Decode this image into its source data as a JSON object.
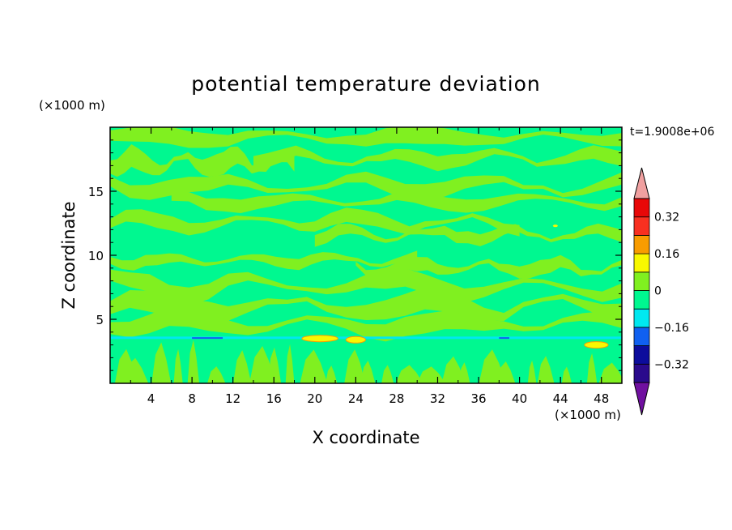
{
  "chart_data": {
    "type": "heatmap",
    "title": "potential temperature deviation",
    "xlabel": "X coordinate",
    "ylabel": "Z coordinate",
    "x_unit": "(×1000 m)",
    "y_unit": "(×1000 m)",
    "time_label": "t=1.9008e+06",
    "xlim": [
      0,
      50
    ],
    "ylim": [
      0,
      20
    ],
    "x_ticks": [
      4,
      8,
      12,
      16,
      20,
      24,
      28,
      32,
      36,
      40,
      44,
      48
    ],
    "y_ticks": [
      5,
      10,
      15
    ],
    "colorbar": {
      "levels": [
        -0.4,
        -0.32,
        -0.24,
        -0.16,
        -0.08,
        0,
        0.08,
        0.16,
        0.24,
        0.32,
        0.4
      ],
      "labeled_ticks": [
        0.32,
        0.16,
        0,
        -0.16,
        -0.32
      ],
      "tick_labels": [
        "0.32",
        "0.16",
        "0",
        "−0.16",
        "−0.32"
      ],
      "colors": [
        "#2a0a8c",
        "#0c0c9c",
        "#1060f0",
        "#00e8f0",
        "#00f890",
        "#80f020",
        "#f8f800",
        "#f89c00",
        "#f83020",
        "#e80808"
      ],
      "under_color": "#7010a0",
      "over_color": "#f0a0a0"
    },
    "field": {
      "background_color": "#00f890",
      "positive_color": "#80f020",
      "warm_color": "#f8f800",
      "warm_edge_color": "#f89c00",
      "cool_color": "#00e8f0",
      "blue_color": "#1060f0"
    }
  }
}
